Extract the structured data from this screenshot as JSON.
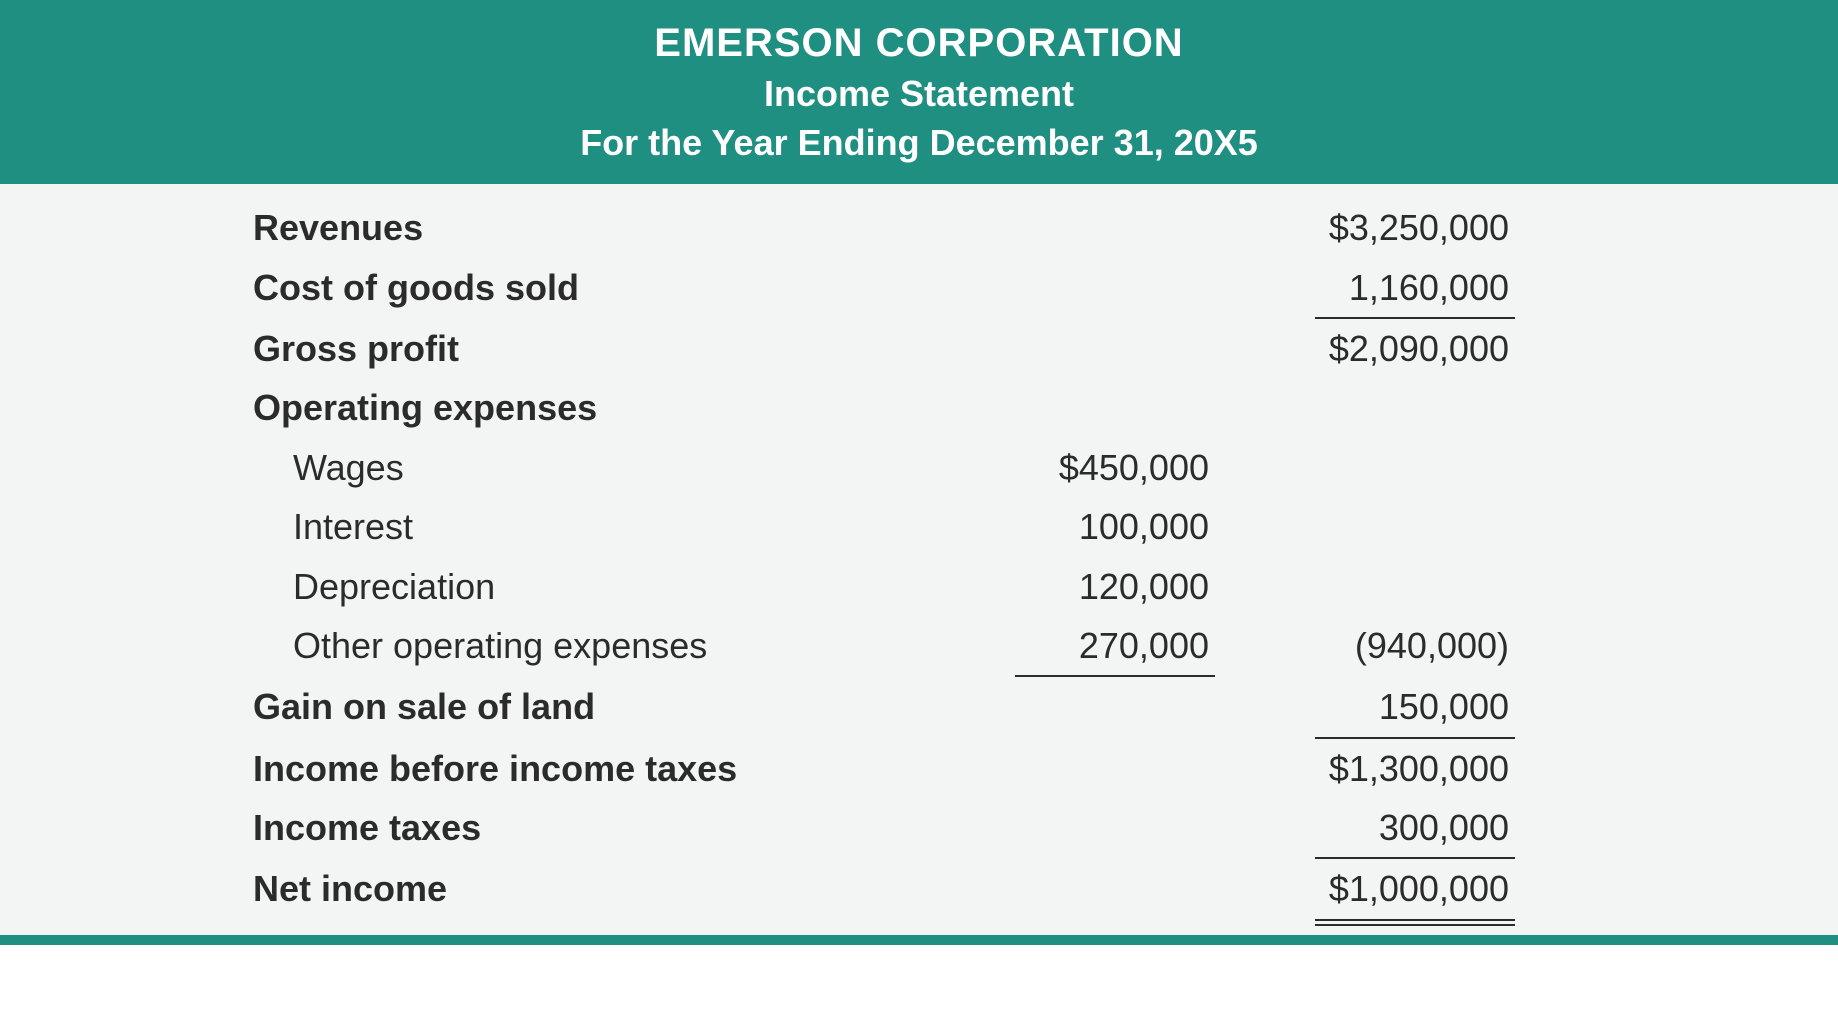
{
  "header": {
    "company": "EMERSON CORPORATION",
    "title": "Income Statement",
    "period": "For the Year Ending December 31, 20X5"
  },
  "rows": {
    "revenues": {
      "label": "Revenues",
      "col2": "$3,250,000"
    },
    "cogs": {
      "label": "Cost of goods sold",
      "col2": "1,160,000"
    },
    "gross_profit": {
      "label": "Gross profit",
      "col2": "$2,090,000"
    },
    "opex_header": {
      "label": "Operating expenses"
    },
    "wages": {
      "label": "Wages",
      "col1": "$450,000"
    },
    "interest": {
      "label": "Interest",
      "col1": "100,000"
    },
    "depreciation": {
      "label": "Depreciation",
      "col1": "120,000"
    },
    "other_opex": {
      "label": "Other operating expenses",
      "col1": "270,000",
      "col2": "(940,000)"
    },
    "gain_land": {
      "label": "Gain on sale of land",
      "col2": "150,000"
    },
    "income_before_tax": {
      "label": "Income before income taxes",
      "col2": "$1,300,000"
    },
    "income_taxes": {
      "label": "Income taxes",
      "col2": "300,000"
    },
    "net_income": {
      "label": "Net income",
      "col2": "$1,000,000"
    }
  },
  "style": {
    "header_bg": "#1f8f82",
    "header_text": "#ffffff",
    "body_bg": "#f3f5f5",
    "text_color": "#2b2b2b",
    "rule_color": "#2b2b2b",
    "font_size_header_company": 40,
    "font_size_header_other": 36,
    "font_size_body": 36,
    "content_width": 1368,
    "label_col_width": 700,
    "num_col_width": 300
  }
}
